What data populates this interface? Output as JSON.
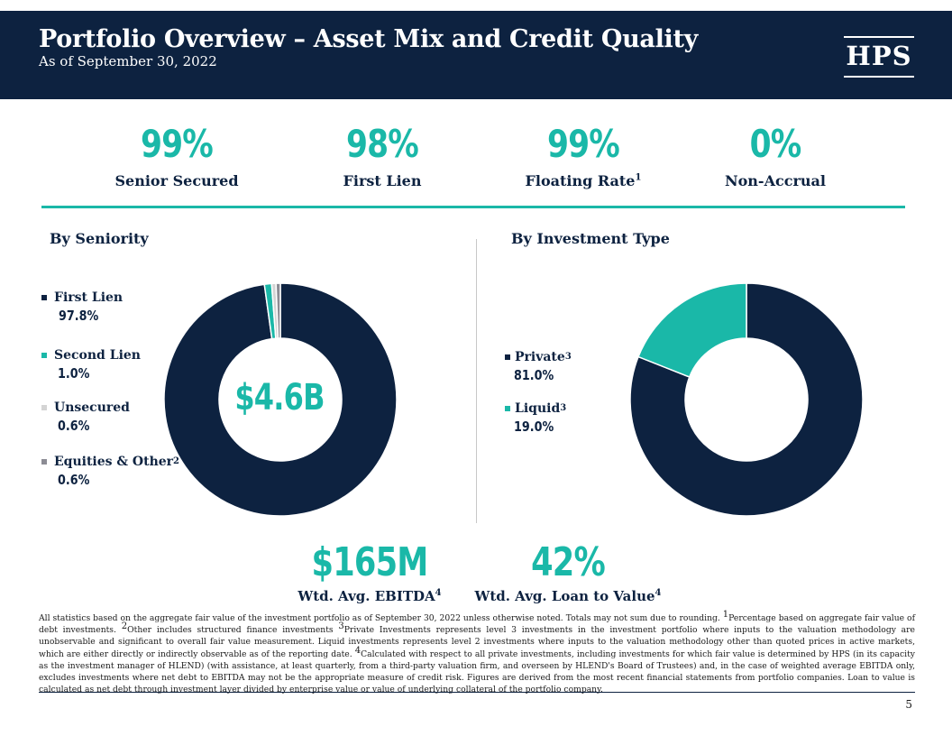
{
  "header": {
    "title": "Portfolio Overview – Asset Mix and Credit Quality",
    "subtitle": "As of September 30, 2022",
    "logo_text": "HPS"
  },
  "stats": [
    {
      "value": "99%",
      "label": "Senior Secured",
      "sup": ""
    },
    {
      "value": "98%",
      "label": "First Lien",
      "sup": ""
    },
    {
      "value": "99%",
      "label": "Floating Rate",
      "sup": "1"
    },
    {
      "value": "0%",
      "label": "Non-Accrual",
      "sup": ""
    }
  ],
  "seniority": {
    "heading": "By Seniority",
    "center_total": "$4.6B",
    "legend": [
      {
        "label": "First Lien",
        "sup": "",
        "value": "97.8%"
      },
      {
        "label": "Second Lien",
        "sup": "",
        "value": "1.0%"
      },
      {
        "label": "Unsecured",
        "sup": "",
        "value": "0.6%"
      },
      {
        "label": "Equities & Other",
        "sup": "2",
        "value": "0.6%"
      }
    ]
  },
  "investment_type": {
    "heading": "By Investment Type",
    "legend": [
      {
        "label": "Private",
        "sup": "3",
        "value": "81.0%"
      },
      {
        "label": "Liquid",
        "sup": "3",
        "value": "19.0%"
      }
    ]
  },
  "chart_data": [
    {
      "type": "pie",
      "title": "By Seniority",
      "categories": [
        "First Lien",
        "Second Lien",
        "Unsecured",
        "Equities & Other"
      ],
      "values": [
        97.8,
        1.0,
        0.6,
        0.6
      ],
      "colors": [
        "#0d2240",
        "#1ab8a8",
        "#d4d4d4",
        "#8c8c94"
      ],
      "donut": true,
      "center_label": "$4.6B"
    },
    {
      "type": "pie",
      "title": "By Investment Type",
      "categories": [
        "Private",
        "Liquid"
      ],
      "values": [
        81.0,
        19.0
      ],
      "colors": [
        "#0d2240",
        "#1ab8a8"
      ],
      "donut": true
    }
  ],
  "kpis": [
    {
      "value": "$165M",
      "label": "Wtd. Avg. EBITDA",
      "sup": "4"
    },
    {
      "value": "42%",
      "label": "Wtd. Avg.  Loan to Value",
      "sup": "4"
    }
  ],
  "footnote": {
    "p1": "All statistics based on the aggregate fair value of the investment portfolio as of September 30, 2022 unless otherwise noted. Totals may not sum due to rounding. ",
    "s1": "1",
    "p2": "Percentage based on aggregate fair value of debt investments. ",
    "s2": "2",
    "p3": "Other includes structured finance investments ",
    "s3": "3",
    "p4": "Private Investments represents level 3 investments in the investment portfolio where inputs to the valuation methodology are unobservable and significant to overall fair value measurement. Liquid investments represents level 2 investments where inputs to the valuation methodology other than quoted prices in active markets, which are either directly or indirectly observable as of the reporting date. ",
    "s4": "4",
    "p5": "Calculated with respect to all private investments, including investments for which fair value is determined by HPS (in its capacity as the investment manager of HLEND) (with assistance, at least quarterly, from a third-party valuation firm, and overseen by HLEND's Board of Trustees) and, in the case of weighted average EBITDA only, excludes investments where net debt to EBITDA may not be the appropriate measure of credit risk. Figures are derived from the most recent financial statements from portfolio companies. Loan to value is calculated as net debt through investment layer divided by enterprise value or value of underlying collateral of the portfolio company."
  },
  "page_number": "5"
}
